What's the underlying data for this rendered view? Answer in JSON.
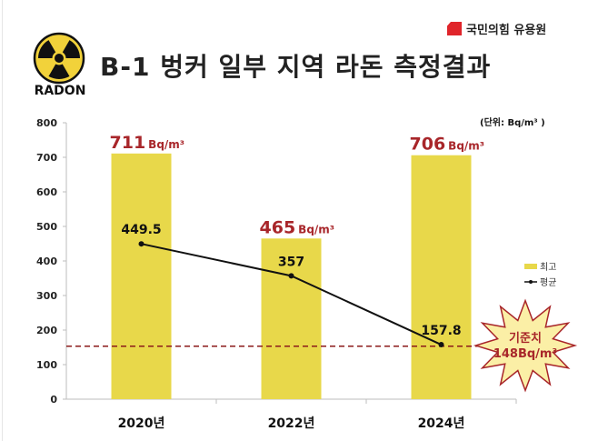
{
  "header": {
    "title": "B-1 벙커 일부 지역 라돈 측정결과",
    "logo_text": "RADON",
    "logo_icon": "radiation-hazard-icon",
    "party": "국민의힘 유용원"
  },
  "unit_note": "(단위: Bq/m³ )",
  "legend": {
    "max": "최고",
    "avg": "평균"
  },
  "standard": {
    "label": "기준치",
    "value_text": "148Bq/m³",
    "value": 148
  },
  "colors": {
    "bar": "#e8d84a",
    "line": "#111111",
    "max_label": "#a8262a",
    "standard_line": "#8b1a1a",
    "burst_fill": "#fbefa6",
    "burst_stroke": "#a8262a"
  },
  "chart_data": {
    "type": "bar",
    "title": "B-1 벙커 일부 지역 라돈 측정결과",
    "xlabel": "",
    "ylabel": "Bq/m³",
    "ylim": [
      0,
      800
    ],
    "yticks": [
      0,
      100,
      200,
      300,
      400,
      500,
      600,
      700,
      800
    ],
    "categories": [
      "2020년",
      "2022년",
      "2024년"
    ],
    "series": [
      {
        "name": "최고",
        "type": "bar",
        "values": [
          711,
          465,
          706
        ],
        "labels": [
          "711",
          "465",
          "706"
        ],
        "label_unit": "Bq/m³"
      },
      {
        "name": "평균",
        "type": "line",
        "values": [
          449.5,
          357,
          157.8
        ],
        "labels": [
          "449.5",
          "357",
          "157.8"
        ]
      }
    ],
    "reference_line": {
      "name": "기준치",
      "value": 148,
      "style": "dashed"
    },
    "legend_position": "right",
    "grid": false
  }
}
